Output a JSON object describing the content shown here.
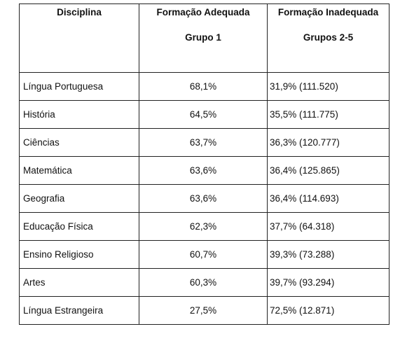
{
  "table": {
    "headers": {
      "discipline": "Disciplina",
      "adequate_line1": "Formação Adequada",
      "adequate_line2": "Grupo 1",
      "inadequate_line1": "Formação Inadequada",
      "inadequate_line2": "Grupos 2-5"
    },
    "rows": [
      {
        "discipline": "Língua Portuguesa",
        "adequate": "68,1%",
        "inadequate": "31,9% (111.520)"
      },
      {
        "discipline": "História",
        "adequate": "64,5%",
        "inadequate": "35,5% (111.775)"
      },
      {
        "discipline": "Ciências",
        "adequate": "63,7%",
        "inadequate": "36,3% (120.777)"
      },
      {
        "discipline": "Matemática",
        "adequate": "63,6%",
        "inadequate": "36,4% (125.865)"
      },
      {
        "discipline": "Geografia",
        "adequate": "63,6%",
        "inadequate": "36,4% (114.693)"
      },
      {
        "discipline": "Educação Física",
        "adequate": "62,3%",
        "inadequate": "37,7% (64.318)"
      },
      {
        "discipline": "Ensino Religioso",
        "adequate": "60,7%",
        "inadequate": "39,3% (73.288)"
      },
      {
        "discipline": "Artes",
        "adequate": "60,3%",
        "inadequate": "39,7% (93.294)"
      },
      {
        "discipline": "Língua Estrangeira",
        "adequate": "27,5%",
        "inadequate": "72,5% (12.871)"
      }
    ]
  }
}
